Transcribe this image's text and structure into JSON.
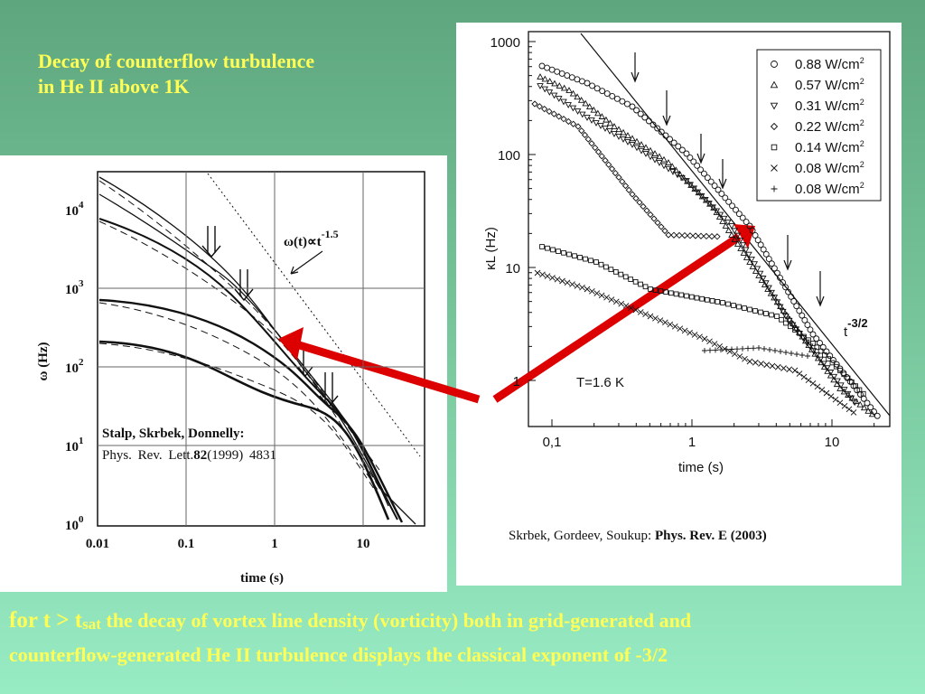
{
  "title": [
    "Decay of counterflow turbulence",
    "in He II above 1K"
  ],
  "left_figure": {
    "yticks": [
      {
        "base": "10",
        "exp": "0"
      },
      {
        "base": "10",
        "exp": "1"
      },
      {
        "base": "10",
        "exp": "2"
      },
      {
        "base": "10",
        "exp": "3"
      },
      {
        "base": "10",
        "exp": "4"
      }
    ],
    "xticks": [
      "0.01",
      "0.1",
      "1",
      "10"
    ],
    "x_label": "time (s)",
    "y_label": "ω (Hz)",
    "annotation": {
      "text": "ω(t)∝t",
      "sup": "-1.5"
    },
    "citation": {
      "authors": "Stalp,  Skrbek,  Donnelly:",
      "journal": "Phys. Rev. Lett.",
      "volume": "82",
      "rest": "(1999) 4831"
    }
  },
  "right_figure": {
    "yticks": [
      "1",
      "10",
      "100",
      "1000"
    ],
    "xticks": [
      "0,1",
      "1",
      "10"
    ],
    "x_label": "time (s)",
    "y_label": "κL (Hz)",
    "legend": [
      {
        "text": "0.88 W/cm",
        "sup": "2"
      },
      {
        "text": "0.57 W/cm",
        "sup": "2"
      },
      {
        "text": "0.31 W/cm",
        "sup": "2"
      },
      {
        "text": "0.22 W/cm",
        "sup": "2"
      },
      {
        "text": "0.14 W/cm",
        "sup": "2"
      },
      {
        "text": "0.08 W/cm",
        "sup": "2"
      },
      {
        "text": "0.08 W/cm",
        "sup": "2"
      }
    ],
    "temperature": "T=1.6 K",
    "slope": {
      "text": "t",
      "sup": "-3/2"
    }
  },
  "right_citation": {
    "authors": "Skrbek, Gordeev, Soukup: ",
    "journal": "Phys. Rev. E (2003)"
  },
  "footer": {
    "lead": "for t > t",
    "sub": "sat",
    "line1": " the decay of vortex line density (vorticity) both in grid-generated and",
    "line2": "counterflow-generated He II turbulence displays the classical exponent  of  -3/2"
  }
}
